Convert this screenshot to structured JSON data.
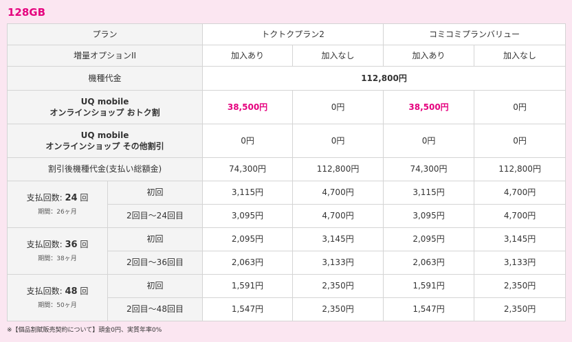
{
  "capacity": "128GB",
  "header": {
    "plan_label": "プラン",
    "plan1": "トクトクプラン2",
    "plan2": "コミコミプランバリュー",
    "option_label": "増量オプションII",
    "join": "加入あり",
    "nojoin": "加入なし"
  },
  "device_price": {
    "label": "機種代金",
    "value": "112,800円"
  },
  "discount_otoku": {
    "label_line1": "UQ mobile",
    "label_line2": "オンラインショップ おトク割",
    "values": [
      "38,500円",
      "0円",
      "38,500円",
      "0円"
    ]
  },
  "discount_other": {
    "label_line1": "UQ mobile",
    "label_line2": "オンラインショップ その他割引",
    "values": [
      "0円",
      "0円",
      "0円",
      "0円"
    ]
  },
  "after_discount": {
    "label": "割引後機種代金(支払い総額金)",
    "values": [
      "74,300円",
      "112,800円",
      "74,300円",
      "112,800円"
    ]
  },
  "payments": [
    {
      "prefix": "支払回数: ",
      "count": "24",
      "suffix": " 回",
      "period": "期間：26ヶ月",
      "first_label": "初回",
      "first_values": [
        "3,115円",
        "4,700円",
        "3,115円",
        "4,700円"
      ],
      "rest_label": "2回目〜24回目",
      "rest_values": [
        "3,095円",
        "4,700円",
        "3,095円",
        "4,700円"
      ]
    },
    {
      "prefix": "支払回数: ",
      "count": "36",
      "suffix": " 回",
      "period": "期間：38ヶ月",
      "first_label": "初回",
      "first_values": [
        "2,095円",
        "3,145円",
        "2,095円",
        "3,145円"
      ],
      "rest_label": "2回目〜36回目",
      "rest_values": [
        "2,063円",
        "3,133円",
        "2,063円",
        "3,133円"
      ]
    },
    {
      "prefix": "支払回数: ",
      "count": "48",
      "suffix": " 回",
      "period": "期間：50ヶ月",
      "first_label": "初回",
      "first_values": [
        "1,591円",
        "2,350円",
        "1,591円",
        "2,350円"
      ],
      "rest_label": "2回目〜48回目",
      "rest_values": [
        "1,547円",
        "2,350円",
        "1,547円",
        "2,350円"
      ]
    }
  ],
  "footnote": "※【個品割賦販売契約について】頭金0円、実質年率0%",
  "colors": {
    "accent": "#e5007e",
    "background": "#fbe6f1"
  }
}
